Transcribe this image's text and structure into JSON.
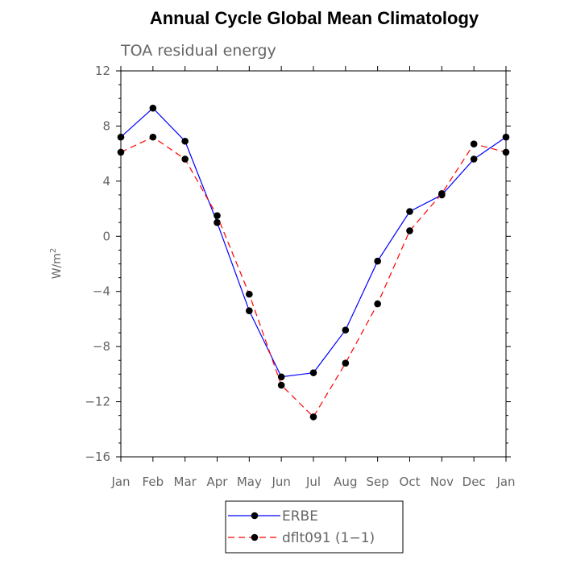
{
  "chart_data": {
    "type": "line",
    "title": "Annual Cycle Global Mean Climatology",
    "subtitle": "TOA residual energy",
    "ylabel": "W/m",
    "ylabel_superscript": "2",
    "ylim": [
      -16,
      12
    ],
    "yticks": [
      12,
      8,
      4,
      0,
      -4,
      -8,
      -12,
      -16
    ],
    "ytick_labels": [
      "12",
      "8",
      "4",
      "0",
      "−4",
      "−8",
      "−12",
      "−16"
    ],
    "categories": [
      "Jan",
      "Feb",
      "Mar",
      "Apr",
      "May",
      "Jun",
      "Jul",
      "Aug",
      "Sep",
      "Oct",
      "Nov",
      "Dec",
      "Jan"
    ],
    "series": [
      {
        "name": "ERBE",
        "color": "#0000ff",
        "dash": "solid",
        "marker": "circle",
        "values": [
          7.2,
          9.3,
          6.9,
          1.0,
          -5.4,
          -10.2,
          -9.9,
          -6.8,
          -1.8,
          1.8,
          3.0,
          5.6,
          7.2
        ]
      },
      {
        "name": "dflt091 (1−1)",
        "color": "#ff0000",
        "dash": "dashed",
        "marker": "circle",
        "values": [
          6.1,
          7.2,
          5.6,
          1.5,
          -4.2,
          -10.8,
          -13.1,
          -9.2,
          -4.9,
          0.4,
          3.1,
          6.7,
          6.1
        ]
      }
    ],
    "legend_position": "bottom-center",
    "grid": false
  }
}
